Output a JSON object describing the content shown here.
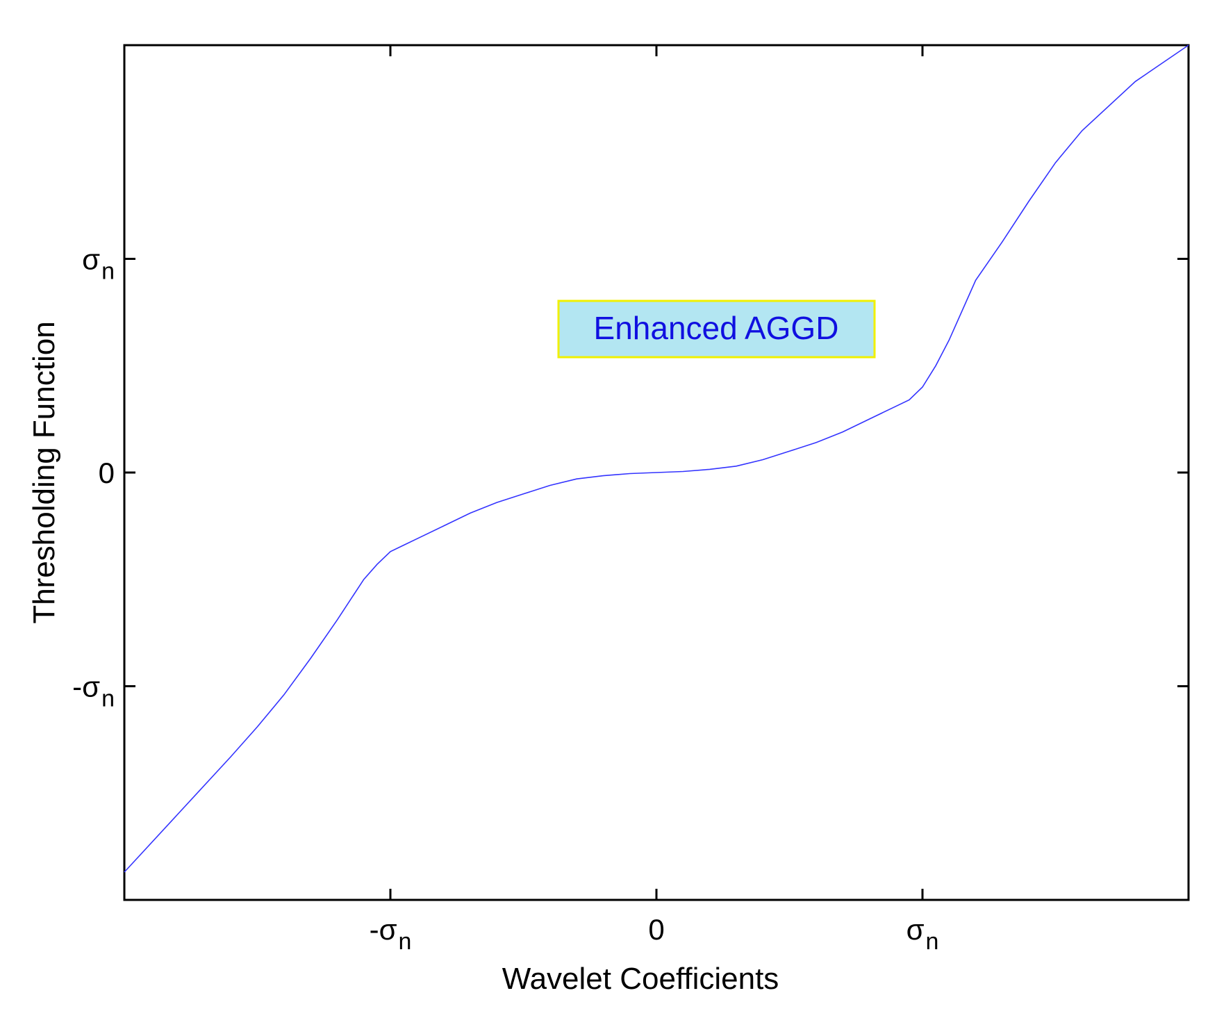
{
  "chart_data": {
    "type": "line",
    "title": "",
    "xlabel": "Wavelet Coefficients",
    "ylabel": "Thresholding Function",
    "xlim": [
      -2.0,
      2.0
    ],
    "ylim": [
      -2.0,
      2.0
    ],
    "grid": false,
    "x_ticks": [
      {
        "value": -1,
        "label": "-σ",
        "sub": "n"
      },
      {
        "value": 0,
        "label": "0",
        "sub": ""
      },
      {
        "value": 1,
        "label": "σ",
        "sub": "n"
      }
    ],
    "y_ticks": [
      {
        "value": -1,
        "label": "-σ",
        "sub": "n"
      },
      {
        "value": 0,
        "label": "0",
        "sub": ""
      },
      {
        "value": 1,
        "label": "σ",
        "sub": "n"
      }
    ],
    "annotation": {
      "text": "Enhanced AGGD",
      "x": 0.23,
      "y": 0.68,
      "text_color": "#1010e0",
      "background": "#b3e6f2",
      "border_color": "#f0f000"
    },
    "series": [
      {
        "color": "#3333ff",
        "x": [
          -2.0,
          -1.8,
          -1.6,
          -1.5,
          -1.4,
          -1.3,
          -1.2,
          -1.1,
          -1.05,
          -1.0,
          -0.95,
          -0.9,
          -0.8,
          -0.7,
          -0.6,
          -0.5,
          -0.4,
          -0.3,
          -0.2,
          -0.1,
          0.0,
          0.1,
          0.2,
          0.3,
          0.4,
          0.5,
          0.6,
          0.7,
          0.8,
          0.9,
          0.95,
          1.0,
          1.05,
          1.1,
          1.2,
          1.3,
          1.4,
          1.5,
          1.6,
          1.8,
          2.0
        ],
        "y": [
          -1.87,
          -1.6,
          -1.33,
          -1.19,
          -1.04,
          -0.87,
          -0.69,
          -0.5,
          -0.43,
          -0.37,
          -0.34,
          -0.31,
          -0.25,
          -0.19,
          -0.14,
          -0.1,
          -0.06,
          -0.03,
          -0.015,
          -0.005,
          0.0,
          0.005,
          0.015,
          0.03,
          0.06,
          0.1,
          0.14,
          0.19,
          0.25,
          0.31,
          0.34,
          0.4,
          0.5,
          0.62,
          0.9,
          1.08,
          1.27,
          1.45,
          1.6,
          1.83,
          2.0
        ]
      }
    ]
  }
}
